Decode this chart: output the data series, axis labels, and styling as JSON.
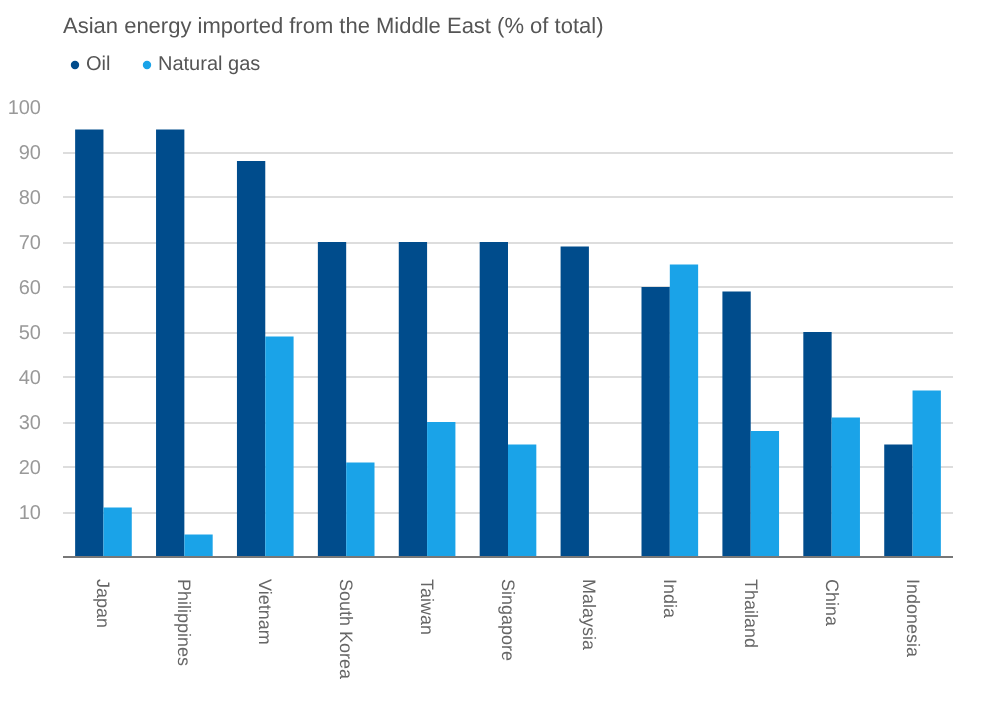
{
  "chart_data": {
    "type": "bar",
    "title": "Asian energy imported from the Middle East (% of total)",
    "categories": [
      "Japan",
      "Philippines",
      "Vietnam",
      "South Korea",
      "Taiwan",
      "Singapore",
      "Malaysia",
      "India",
      "Thailand",
      "China",
      "Indonesia"
    ],
    "series": [
      {
        "name": "Oil",
        "color": "#004c8c",
        "values": [
          95,
          95,
          88,
          70,
          70,
          70,
          69,
          60,
          59,
          50,
          25
        ]
      },
      {
        "name": "Natural gas",
        "color": "#1aa3e8",
        "values": [
          11,
          5,
          49,
          21,
          30,
          25,
          null,
          65,
          28,
          31,
          37
        ]
      }
    ],
    "ylim": [
      0,
      100
    ],
    "yticks": [
      {
        "value": 0,
        "label": null
      },
      10,
      20,
      30,
      40,
      50,
      60,
      70,
      80,
      90,
      100
    ],
    "grid": "y",
    "legend": "top left"
  }
}
